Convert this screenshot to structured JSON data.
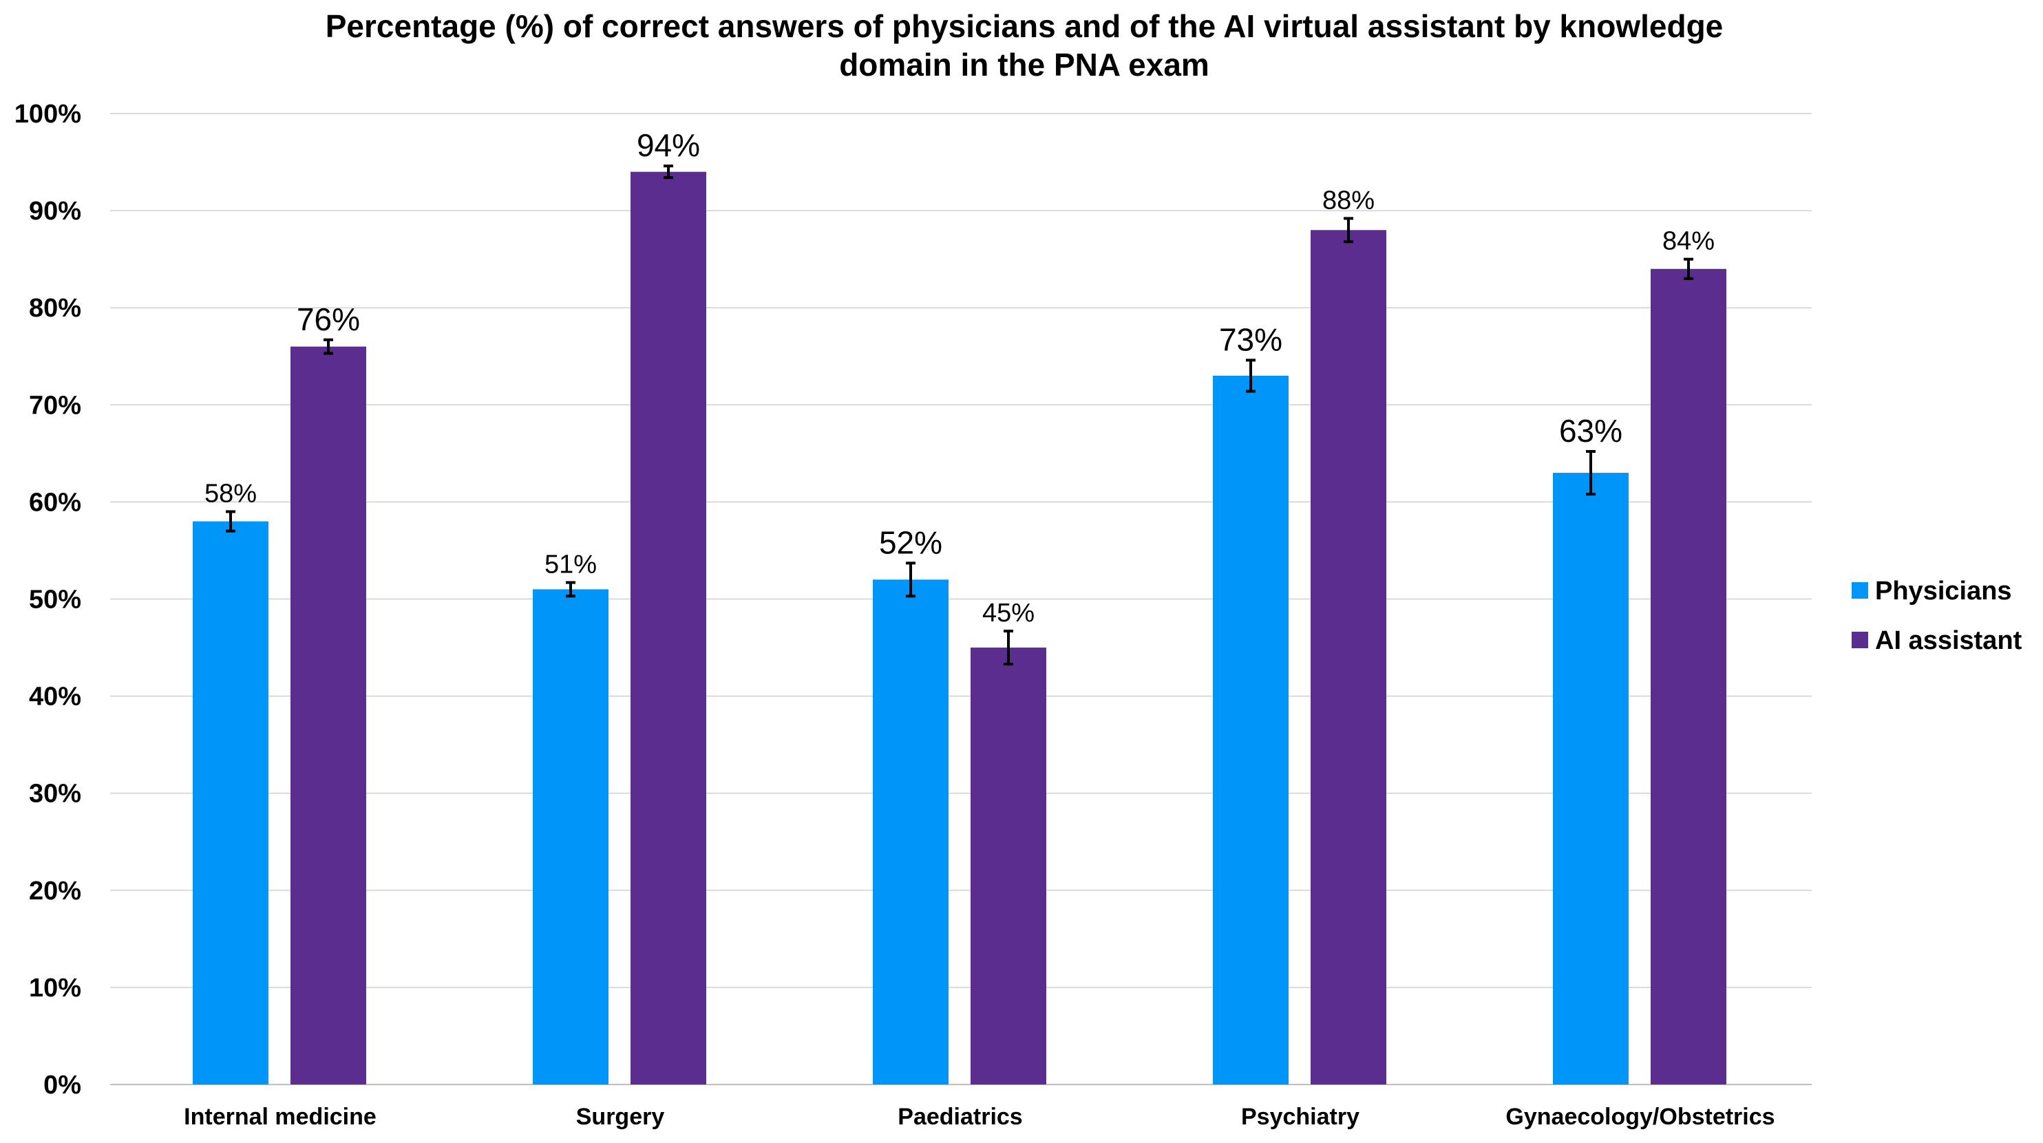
{
  "chart_data": {
    "type": "bar",
    "title": "Percentage (%) of correct answers of physicians and of the AI virtual assistant by knowledge domain in the PNA exam",
    "title_lines": [
      "Percentage (%) of correct answers of physicians and of the AI virtual assistant by knowledge",
      "domain in the PNA exam"
    ],
    "xlabel": "",
    "ylabel": "",
    "ylim": [
      0,
      100
    ],
    "yticks": [
      0,
      10,
      20,
      30,
      40,
      50,
      60,
      70,
      80,
      90,
      100
    ],
    "ytick_labels": [
      "0%",
      "10%",
      "20%",
      "30%",
      "40%",
      "50%",
      "60%",
      "70%",
      "80%",
      "90%",
      "100%"
    ],
    "grid": true,
    "legend_position": "right",
    "categories": [
      "Internal medicine",
      "Surgery",
      "Paediatrics",
      "Psychiatry",
      "Gynaecology/Obstetrics"
    ],
    "series": [
      {
        "name": "Physicians",
        "color": "#0095F8",
        "values": [
          58,
          51,
          52,
          73,
          63
        ],
        "errors": [
          1.0,
          0.7,
          1.7,
          1.6,
          2.2
        ],
        "labels": [
          "58%",
          "51%",
          "52%",
          "73%",
          "63%"
        ]
      },
      {
        "name": "AI assistant",
        "color": "#5B2D8E",
        "values": [
          76,
          94,
          45,
          88,
          84
        ],
        "errors": [
          0.7,
          0.6,
          1.7,
          1.2,
          1.0
        ],
        "labels": [
          "76%",
          "94%",
          "45%",
          "88%",
          "84%"
        ]
      }
    ]
  }
}
